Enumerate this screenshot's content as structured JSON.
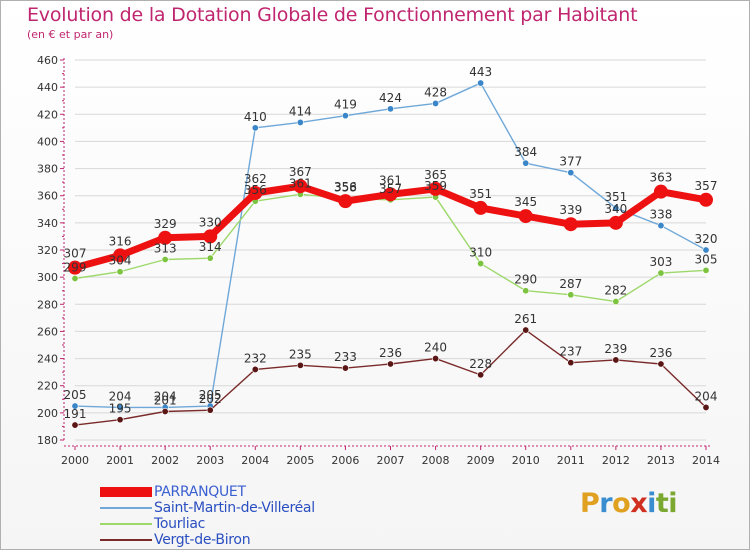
{
  "header": {
    "title": "Evolution de la Dotation Globale de Fonctionnement par Habitant",
    "subtitle": "(en € et par an)"
  },
  "logo": {
    "letters": [
      "P",
      "r",
      "o",
      "x",
      "i",
      "ti"
    ]
  },
  "colors": {
    "title": "#c0266f",
    "axis": "#c0266f",
    "axis_text": "#333333",
    "grid": "#d8d8d8"
  },
  "chart_data": {
    "type": "line",
    "title": "Evolution de la Dotation Globale de Fonctionnement par Habitant",
    "subtitle": "(en € et par an)",
    "xlabel": "",
    "ylabel": "",
    "ylim": [
      180,
      460
    ],
    "yticks": [
      180,
      200,
      220,
      240,
      260,
      280,
      300,
      320,
      340,
      360,
      380,
      400,
      420,
      440,
      460
    ],
    "grid": true,
    "legend_position": "bottom-left",
    "categories": [
      "2000",
      "2001",
      "2002",
      "2003",
      "2004",
      "2005",
      "2006",
      "2007",
      "2008",
      "2009",
      "2010",
      "2011",
      "2012",
      "2013",
      "2014"
    ],
    "series": [
      {
        "name": "Saint-Martin-de-Villeréal",
        "color": "#6fa8d8",
        "marker": "#3a86c8",
        "thick": false,
        "values": [
          205,
          204,
          204,
          205,
          410,
          414,
          419,
          424,
          428,
          443,
          384,
          377,
          351,
          338,
          320
        ],
        "labels": [
          "205",
          "204",
          "204",
          "205",
          "410",
          "414",
          "419",
          "424",
          "428",
          "443",
          "384",
          "377",
          "351",
          "338",
          "320"
        ]
      },
      {
        "name": "Tourliac",
        "color": "#9dd86a",
        "marker": "#7cc440",
        "thick": false,
        "values": [
          299,
          304,
          313,
          314,
          356,
          361,
          358,
          357,
          359,
          310,
          290,
          287,
          282,
          303,
          305
        ],
        "labels": [
          "299",
          "304",
          "313",
          "314",
          "356",
          "361",
          "358",
          "357",
          "359",
          "310",
          "290",
          "287",
          "282",
          "303",
          "305"
        ]
      },
      {
        "name": "Vergt-de-Biron",
        "color": "#7a2a2a",
        "marker": "#5a1515",
        "thick": false,
        "values": [
          191,
          195,
          201,
          202,
          232,
          235,
          233,
          236,
          240,
          228,
          261,
          237,
          239,
          236,
          204
        ],
        "labels": [
          "191",
          "195",
          "201",
          "202",
          "232",
          "235",
          "233",
          "236",
          "240",
          "228",
          "261",
          "237",
          "239",
          "236",
          "204"
        ]
      },
      {
        "name": "PARRANQUET",
        "color": "#ee1111",
        "marker": "#ee1111",
        "thick": true,
        "values": [
          307,
          316,
          329,
          330,
          362,
          367,
          356,
          361,
          365,
          351,
          345,
          339,
          340,
          363,
          357
        ],
        "labels": [
          "307",
          "316",
          "329",
          "330",
          "362",
          "367",
          "356",
          "361",
          "365",
          "351",
          "345",
          "339",
          "340",
          "363",
          "357"
        ]
      }
    ],
    "legend": [
      {
        "name": "PARRANQUET",
        "color": "#ee1111",
        "thick": true
      },
      {
        "name": "Saint-Martin-de-Villeréal",
        "color": "#6fa8d8",
        "thick": false
      },
      {
        "name": "Tourliac",
        "color": "#9dd86a",
        "thick": false
      },
      {
        "name": "Vergt-de-Biron",
        "color": "#7a2a2a",
        "thick": false
      }
    ]
  }
}
